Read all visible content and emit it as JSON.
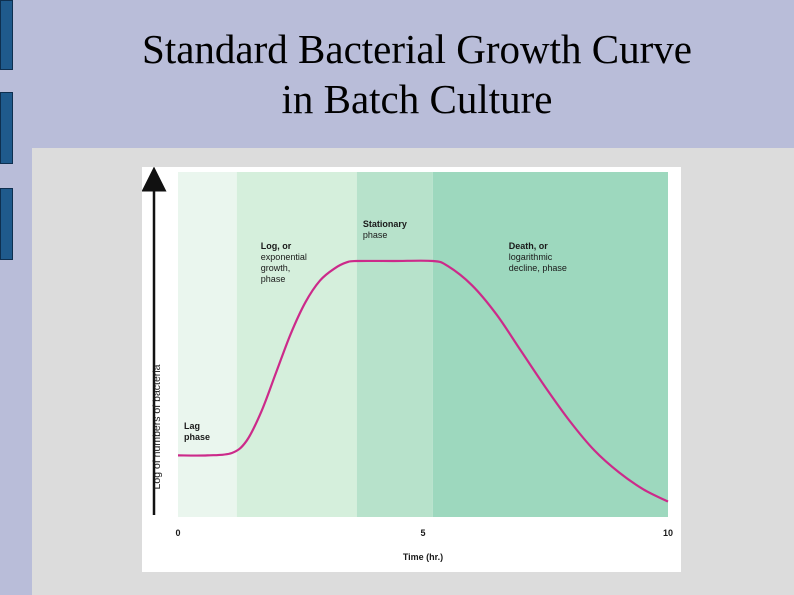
{
  "slide": {
    "title_line1": "Standard Bacterial Growth Curve",
    "title_line2": "in Batch Culture"
  },
  "colors": {
    "background": "#b9bdd9",
    "side_bar": "#1f5a8c",
    "curve": "#cc2a8a",
    "lag_region": "#eaf6ee",
    "log_region": "#d5efdc",
    "stationary_region": "#b7e2cb",
    "death_region": "#9dd8be"
  },
  "chart_data": {
    "type": "line",
    "xlabel": "Time (hr.)",
    "ylabel": "Log of numbers of bacteria",
    "xlim": [
      0,
      10
    ],
    "x_ticks": [
      "0",
      "5",
      "10"
    ],
    "y_ticks_shown": false,
    "grid": false,
    "phases": [
      {
        "label_lines": [
          "Lag",
          "phase"
        ],
        "x_start": 0,
        "x_end": 1.2
      },
      {
        "label_lines": [
          "Log, or",
          "exponential",
          "growth,",
          "phase"
        ],
        "x_start": 1.2,
        "x_end": 3.65
      },
      {
        "label_lines": [
          "Stationary",
          "phase"
        ],
        "x_start": 3.65,
        "x_end": 5.2
      },
      {
        "label_lines": [
          "Death, or",
          "logarithmic",
          "decline, phase"
        ],
        "x_start": 5.2,
        "x_end": 10
      }
    ],
    "series": [
      {
        "x": [
          0,
          0.6,
          1.1,
          1.4,
          1.7,
          2.0,
          2.3,
          2.6,
          2.9,
          3.2,
          3.45,
          3.65,
          4.4,
          5.2,
          5.5,
          6.0,
          6.5,
          7.0,
          7.5,
          8.0,
          8.5,
          9.0,
          9.5,
          10
        ],
        "y": [
          0.2,
          0.2,
          0.21,
          0.26,
          0.38,
          0.54,
          0.7,
          0.83,
          0.92,
          0.97,
          0.995,
          1.0,
          1.0,
          1.0,
          0.98,
          0.9,
          0.78,
          0.63,
          0.48,
          0.34,
          0.22,
          0.13,
          0.06,
          0.01
        ]
      }
    ]
  }
}
